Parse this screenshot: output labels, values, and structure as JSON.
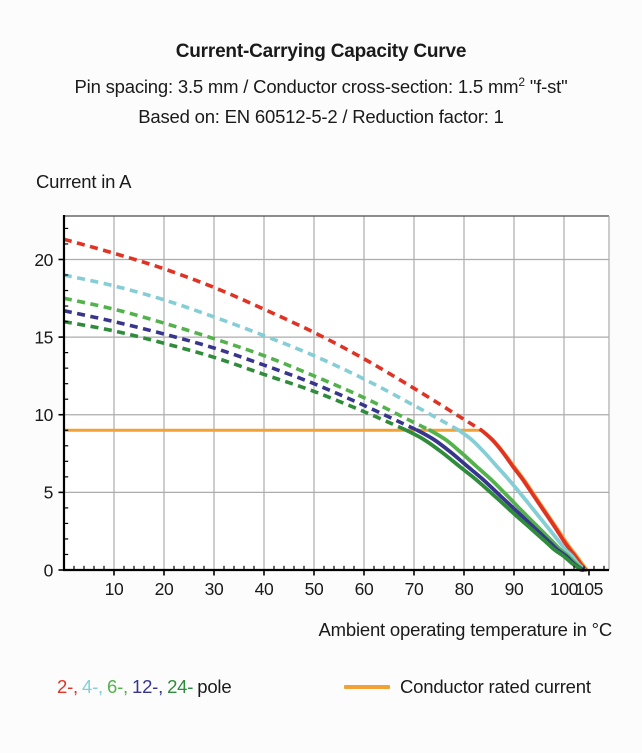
{
  "chart_data": {
    "type": "line",
    "title": "Current-Carrying Capacity Curve",
    "subtitle_pre": "Pin spacing: 3.5 mm / Conductor cross-section: 1.5 mm",
    "subtitle_sup": "2",
    "subtitle_tail": " \"f-st\"",
    "basis": "Based on: EN 60512-5-2 / Reduction factor: 1",
    "ylabel": "Current in A",
    "xlabel": "Ambient operating temperature in °C",
    "x_range": [
      0,
      109
    ],
    "y_range": [
      0,
      22.8
    ],
    "x_major_ticks": [
      10,
      20,
      30,
      40,
      50,
      60,
      70,
      80,
      90,
      100,
      105
    ],
    "x_minor_step": 2,
    "y_major_ticks": [
      0,
      5,
      10,
      15,
      20
    ],
    "y_minor_step": 1,
    "x_gridlines": [
      10,
      20,
      30,
      40,
      50,
      60,
      70,
      80,
      90,
      100
    ],
    "y_gridlines": [
      5,
      10,
      15,
      20
    ],
    "grid_color": "#acacac",
    "axis_color": "#000000",
    "rated_current": {
      "label": "Conductor rated current",
      "value_A": 9,
      "color": "#f2a134",
      "points_flat": [
        [
          0,
          9
        ],
        [
          83.6,
          9
        ]
      ],
      "points_drop": [
        [
          83.6,
          9
        ],
        [
          85.8,
          8.4
        ],
        [
          87.9,
          7.6
        ],
        [
          90,
          6.7
        ],
        [
          92.1,
          5.8
        ],
        [
          94.2,
          4.8
        ],
        [
          96.3,
          3.8
        ],
        [
          98.4,
          2.8
        ],
        [
          100.5,
          1.8
        ],
        [
          101.6,
          1.3
        ],
        [
          102.6,
          0.9
        ],
        [
          103.7,
          0.4
        ],
        [
          104.3,
          0.15
        ],
        [
          104.6,
          0
        ]
      ]
    },
    "series": [
      {
        "name": "2-pole",
        "color": "#e03323",
        "dashed": [
          [
            0,
            21.3
          ],
          [
            10,
            20.4
          ],
          [
            20,
            19.4
          ],
          [
            30,
            18.2
          ],
          [
            40,
            16.8
          ],
          [
            50,
            15.3
          ],
          [
            60,
            13.6
          ],
          [
            70,
            11.7
          ],
          [
            80,
            9.7
          ],
          [
            83.5,
            9.0
          ]
        ],
        "solid": [
          [
            83.5,
            9.0
          ],
          [
            85.6,
            8.4
          ],
          [
            87.7,
            7.6
          ],
          [
            89.7,
            6.7
          ],
          [
            91.8,
            5.8
          ],
          [
            93.9,
            4.8
          ],
          [
            96.0,
            3.8
          ],
          [
            98.1,
            2.8
          ],
          [
            100.1,
            1.8
          ],
          [
            101.2,
            1.3
          ],
          [
            102.2,
            0.9
          ],
          [
            103.3,
            0.4
          ],
          [
            103.9,
            0.15
          ],
          [
            104.3,
            0
          ]
        ]
      },
      {
        "name": "4-pole",
        "color": "#85ced6",
        "dashed": [
          [
            0,
            19.0
          ],
          [
            10,
            18.3
          ],
          [
            20,
            17.4
          ],
          [
            30,
            16.3
          ],
          [
            40,
            15.1
          ],
          [
            50,
            13.8
          ],
          [
            60,
            12.3
          ],
          [
            70,
            10.6
          ],
          [
            79,
            9.0
          ]
        ],
        "solid": [
          [
            79,
            9.0
          ],
          [
            81.5,
            8.4
          ],
          [
            84.0,
            7.6
          ],
          [
            86.5,
            6.7
          ],
          [
            89.0,
            5.8
          ],
          [
            91.6,
            4.8
          ],
          [
            94.1,
            3.8
          ],
          [
            96.6,
            2.8
          ],
          [
            99.1,
            1.8
          ],
          [
            100.3,
            1.3
          ],
          [
            101.6,
            0.9
          ],
          [
            102.8,
            0.4
          ],
          [
            103.6,
            0.15
          ],
          [
            104.1,
            0
          ]
        ]
      },
      {
        "name": "6-pole",
        "color": "#53b24c",
        "dashed": [
          [
            0,
            17.5
          ],
          [
            10,
            16.8
          ],
          [
            20,
            15.9
          ],
          [
            30,
            14.9
          ],
          [
            40,
            13.8
          ],
          [
            50,
            12.5
          ],
          [
            60,
            11.1
          ],
          [
            70,
            9.5
          ],
          [
            73.2,
            9.0
          ]
        ],
        "solid": [
          [
            73.2,
            9.0
          ],
          [
            76.3,
            8.4
          ],
          [
            79.3,
            7.6
          ],
          [
            82.4,
            6.7
          ],
          [
            85.5,
            5.8
          ],
          [
            88.6,
            4.8
          ],
          [
            91.6,
            3.8
          ],
          [
            94.7,
            2.8
          ],
          [
            97.8,
            1.8
          ],
          [
            99.3,
            1.3
          ],
          [
            100.8,
            0.9
          ],
          [
            102.4,
            0.4
          ],
          [
            103.3,
            0.15
          ],
          [
            103.9,
            0
          ]
        ]
      },
      {
        "name": "12-pole",
        "color": "#37358c",
        "dashed": [
          [
            0,
            16.7
          ],
          [
            10,
            16.0
          ],
          [
            20,
            15.2
          ],
          [
            30,
            14.3
          ],
          [
            40,
            13.2
          ],
          [
            50,
            12.0
          ],
          [
            60,
            10.6
          ],
          [
            70,
            9.1
          ],
          [
            70.7,
            9.0
          ]
        ],
        "solid": [
          [
            70.7,
            9.0
          ],
          [
            74.0,
            8.4
          ],
          [
            77.3,
            7.6
          ],
          [
            80.6,
            6.7
          ],
          [
            83.9,
            5.8
          ],
          [
            87.2,
            4.8
          ],
          [
            90.5,
            3.8
          ],
          [
            93.8,
            2.8
          ],
          [
            97.1,
            1.8
          ],
          [
            98.7,
            1.3
          ],
          [
            100.4,
            0.9
          ],
          [
            102.0,
            0.4
          ],
          [
            103.0,
            0.15
          ],
          [
            103.7,
            0
          ]
        ]
      },
      {
        "name": "24-pole",
        "color": "#2e8c3a",
        "dashed": [
          [
            0,
            16.0
          ],
          [
            10,
            15.4
          ],
          [
            20,
            14.6
          ],
          [
            30,
            13.7
          ],
          [
            40,
            12.6
          ],
          [
            50,
            11.5
          ],
          [
            60,
            10.2
          ],
          [
            68.5,
            9.0
          ]
        ],
        "solid": [
          [
            68.5,
            9.0
          ],
          [
            72.0,
            8.4
          ],
          [
            75.5,
            7.6
          ],
          [
            79.0,
            6.7
          ],
          [
            82.5,
            5.8
          ],
          [
            86.0,
            4.8
          ],
          [
            89.4,
            3.8
          ],
          [
            92.9,
            2.8
          ],
          [
            96.4,
            1.8
          ],
          [
            98.1,
            1.3
          ],
          [
            99.9,
            0.9
          ],
          [
            101.7,
            0.4
          ],
          [
            102.8,
            0.15
          ],
          [
            103.4,
            0
          ]
        ]
      }
    ],
    "legend": {
      "poles": [
        {
          "label": "2-,",
          "color": "#e03323"
        },
        {
          "label": "4-,",
          "color": "#85ced6"
        },
        {
          "label": "6-,",
          "color": "#53b24c"
        },
        {
          "label": "12-,",
          "color": "#37358c"
        },
        {
          "label": "24-",
          "color": "#2e8c3a"
        }
      ],
      "pole_suffix": "pole",
      "rated_label": "Conductor rated current"
    }
  }
}
